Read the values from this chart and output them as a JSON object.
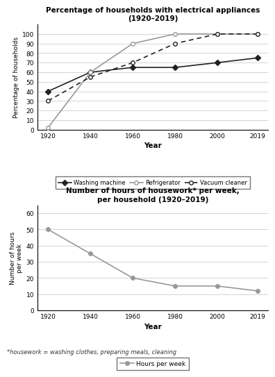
{
  "years": [
    1920,
    1940,
    1960,
    1980,
    2000,
    2019
  ],
  "washing_machine": [
    40,
    60,
    65,
    65,
    70,
    75
  ],
  "refrigerator": [
    2,
    60,
    90,
    100,
    100,
    100
  ],
  "vacuum_cleaner": [
    30,
    55,
    70,
    90,
    100,
    100
  ],
  "hours_per_week": [
    50,
    35,
    20,
    15,
    15,
    12
  ],
  "chart1_title": "Percentage of households with electrical appliances\n(1920–2019)",
  "chart2_title": "Number of hours of housework* per week,\nper household (1920–2019)",
  "chart1_ylabel": "Percentage of households",
  "chart2_ylabel": "Number of hours\nper week",
  "xlabel": "Year",
  "chart1_ylim": [
    0,
    110
  ],
  "chart2_ylim": [
    0,
    65
  ],
  "chart1_yticks": [
    0,
    10,
    20,
    30,
    40,
    50,
    60,
    70,
    80,
    90,
    100
  ],
  "chart2_yticks": [
    0,
    10,
    20,
    30,
    40,
    50,
    60
  ],
  "footnote": "*housework = washing clothes, preparing meals, cleaning",
  "line_color_wm": "#222222",
  "line_color_ref": "#999999",
  "line_color_vac": "#222222",
  "line_color_hours": "#999999"
}
